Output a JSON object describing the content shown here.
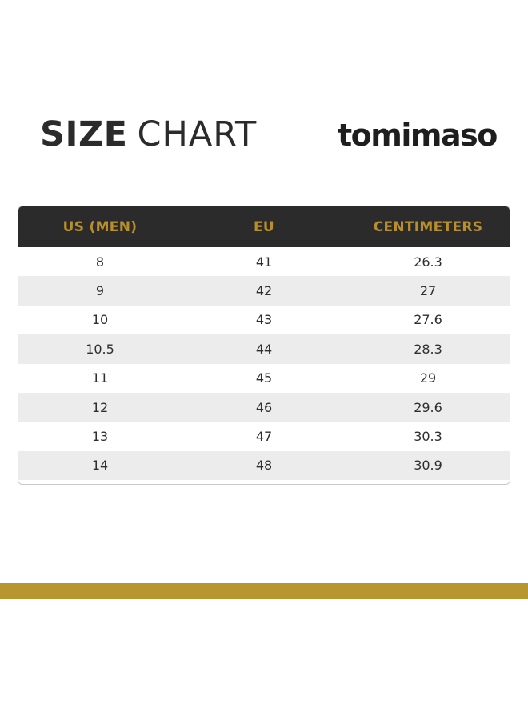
{
  "title": {
    "bold": "SIZE",
    "light": "CHART"
  },
  "brand": {
    "name": "tomimaso"
  },
  "colors": {
    "header_bg": "#2b2b2b",
    "header_text": "#b88f2a",
    "gold_band": "#b8952e",
    "alt_row": "#ececec"
  },
  "table": {
    "headers": [
      "US (MEN)",
      "EU",
      "CENTIMETERS"
    ],
    "rows": [
      [
        "8",
        "41",
        "26.3"
      ],
      [
        "9",
        "42",
        "27"
      ],
      [
        "10",
        "43",
        "27.6"
      ],
      [
        "10.5",
        "44",
        "28.3"
      ],
      [
        "11",
        "45",
        "29"
      ],
      [
        "12",
        "46",
        "29.6"
      ],
      [
        "13",
        "47",
        "30.3"
      ],
      [
        "14",
        "48",
        "30.9"
      ]
    ]
  }
}
